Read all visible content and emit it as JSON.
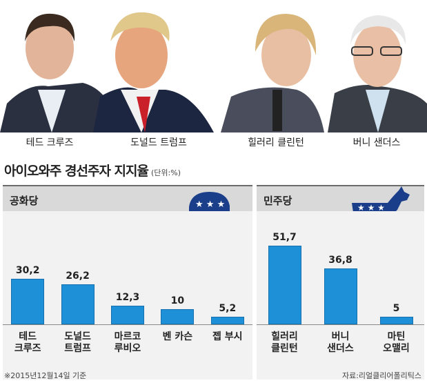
{
  "names": [
    "테드 크루즈",
    "도널드 트럼프",
    "힐러리 클린턴",
    "버니 샌더스"
  ],
  "title": "아이오와주 경선주자 지지율",
  "unit": "(단위:%)",
  "footnote": "※2015년12월14일 기준",
  "source": "자료:리얼클리어폴리틱스",
  "chart_data": [
    {
      "type": "bar",
      "party": "공화당",
      "color": "#1e90d8",
      "categories": [
        "테드\n크루즈",
        "도널드\n트럼프",
        "마르코\n루비오",
        "벤 카슨",
        "젭 부시"
      ],
      "values": [
        30.2,
        26.2,
        12.3,
        10,
        5.2
      ],
      "value_labels": [
        "30,2",
        "26,2",
        "12,3",
        "10",
        "5,2"
      ]
    },
    {
      "type": "bar",
      "party": "민주당",
      "color": "#1e90d8",
      "categories": [
        "힐러리\n클린턴",
        "버니\n샌더스",
        "마틴\n오맬리"
      ],
      "values": [
        51.7,
        36.8,
        5
      ],
      "value_labels": [
        "51,7",
        "36,8",
        "5"
      ]
    }
  ]
}
